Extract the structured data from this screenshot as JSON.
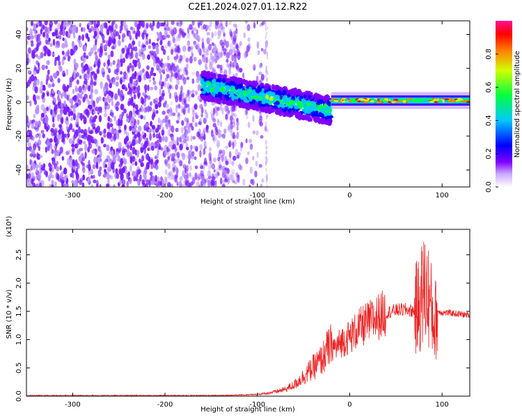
{
  "title": "C2E1.2024.027.01.12.R22",
  "chart_data": [
    {
      "type": "heatmap",
      "xlabel": "Height of straight line (km)",
      "ylabel": "Frequency (Hz)",
      "xlim": [
        -350,
        130
      ],
      "ylim": [
        -50,
        48
      ],
      "xticks": [
        -300,
        -200,
        -100,
        0,
        100
      ],
      "yticks": [
        -40,
        -20,
        0,
        20,
        40
      ],
      "grid": false,
      "colorbar": {
        "label": "Normalized spectral amplitude",
        "range": [
          0.0,
          1.0
        ],
        "ticks": [
          "0.0",
          "0.2",
          "0.4",
          "0.6",
          "0.8"
        ],
        "colormap": [
          "#ffffff",
          "#8000ff",
          "#0000ff",
          "#00ffff",
          "#00ff00",
          "#ffff00",
          "#ff0000",
          "#ff0080"
        ]
      },
      "regions": [
        {
          "x": [
            -350,
            -120
          ],
          "freq": [
            -50,
            48
          ],
          "amplitude": [
            0.05,
            0.2
          ],
          "description_free": true
        },
        {
          "x": [
            -160,
            -20
          ],
          "freq_center": [
            10,
            -5
          ],
          "amplitude": [
            0.2,
            0.5
          ]
        },
        {
          "x": [
            -20,
            130
          ],
          "freq_center": [
            2,
            0
          ],
          "amplitude": [
            0.3,
            0.9
          ]
        }
      ]
    },
    {
      "type": "line",
      "xlabel": "Height of straight line (km)",
      "ylabel": "SNR (10 * v/v)",
      "yscale_label": "(x10⁴)",
      "xlim": [
        -350,
        130
      ],
      "ylim": [
        0,
        2.95
      ],
      "xticks": [
        -300,
        -200,
        -100,
        0,
        100
      ],
      "yticks": [
        "0.0",
        "0.5",
        "1.0",
        "1.5",
        "2.0",
        "2.5"
      ],
      "grid": false,
      "color": "#ff0000",
      "series": [
        {
          "x": [
            -350,
            -300,
            -250,
            -200,
            -150,
            -120,
            -100,
            -90,
            -80,
            -70,
            -60,
            -50,
            -40,
            -30,
            -25,
            -20,
            -15,
            -10,
            0,
            10,
            20,
            30,
            40,
            50,
            60,
            70,
            75,
            80,
            85,
            90,
            92,
            95,
            100,
            110,
            120,
            130
          ],
          "values": [
            0.01,
            0.01,
            0.01,
            0.01,
            0.01,
            0.02,
            0.03,
            0.05,
            0.08,
            0.12,
            0.2,
            0.35,
            0.5,
            0.65,
            0.8,
            0.9,
            0.85,
            0.95,
            1.05,
            1.2,
            1.3,
            1.4,
            1.48,
            1.52,
            1.53,
            1.5,
            1.6,
            1.9,
            1.8,
            1.4,
            1.3,
            1.5,
            1.48,
            1.47,
            1.45,
            1.43
          ]
        }
      ]
    }
  ]
}
